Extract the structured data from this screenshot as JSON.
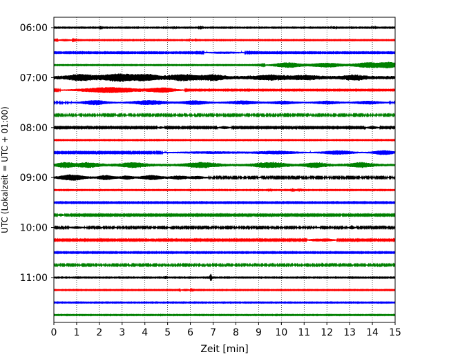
{
  "chart_data": {
    "type": "line",
    "subtype": "helicorder-seismogram",
    "title": "",
    "xlabel": "Zeit  [min]",
    "ylabel": "UTC (Lokalzeit = UTC + 01:00)",
    "xlim": [
      0,
      15
    ],
    "x_ticks": [
      0,
      1,
      2,
      3,
      4,
      5,
      6,
      7,
      8,
      9,
      10,
      11,
      12,
      13,
      14,
      15
    ],
    "x_tick_labels": [
      "0",
      "1",
      "2",
      "3",
      "4",
      "5",
      "6",
      "7",
      "8",
      "9",
      "10",
      "11",
      "12",
      "13",
      "14",
      "15"
    ],
    "y_tick_labels": [
      "06:00",
      "07:00",
      "08:00",
      "09:00",
      "10:00",
      "11:00"
    ],
    "y_tick_row_indices": [
      0,
      4,
      8,
      12,
      16,
      20
    ],
    "grid": {
      "vertical": true,
      "style": "dotted"
    },
    "legend": "none",
    "color_cycle": [
      "#000000",
      "#ff0000",
      "#0000ff",
      "#008000"
    ],
    "row_minutes": 15,
    "traces": [
      {
        "start": "06:00",
        "color": "#000000",
        "noise": 0.15,
        "bursts": [
          {
            "t": 2.05,
            "a": 0.7,
            "w": 0.05
          },
          {
            "t": 5.3,
            "a": 0.5,
            "w": 0.05
          },
          {
            "t": 6.45,
            "a": 0.7,
            "w": 0.06
          },
          {
            "t": 12.3,
            "a": 0.5,
            "w": 0.08
          },
          {
            "t": 14.05,
            "a": 0.5,
            "w": 0.06
          }
        ]
      },
      {
        "start": "06:15",
        "color": "#ff0000",
        "noise": 0.15,
        "bursts": [
          {
            "t": 0.5,
            "a": 0.4,
            "w": 0.3
          },
          {
            "t": 6.1,
            "a": 0.4,
            "w": 0.1
          }
        ]
      },
      {
        "start": "06:30",
        "color": "#0000ff",
        "noise": 0.2,
        "bursts": [
          {
            "t": 7.5,
            "a": 0.35,
            "w": 0.8
          }
        ]
      },
      {
        "start": "06:45",
        "color": "#008000",
        "noise": 0.15,
        "bursts": [
          {
            "t": 10.3,
            "a": 1.1,
            "w": 0.7
          },
          {
            "t": 12.0,
            "a": 1.0,
            "w": 0.7
          },
          {
            "t": 13.9,
            "a": 1.2,
            "w": 0.8
          },
          {
            "t": 14.8,
            "a": 1.0,
            "w": 0.4
          }
        ]
      },
      {
        "start": "07:00",
        "color": "#000000",
        "noise": 0.8,
        "bursts": [
          {
            "t": 1.2,
            "a": 1.0,
            "w": 0.6
          },
          {
            "t": 2.8,
            "a": 1.2,
            "w": 0.7
          },
          {
            "t": 4.0,
            "a": 1.0,
            "w": 0.6
          },
          {
            "t": 5.7,
            "a": 0.9,
            "w": 0.7
          },
          {
            "t": 7.0,
            "a": 0.8,
            "w": 0.5
          },
          {
            "t": 9.5,
            "a": 0.7,
            "w": 0.7
          },
          {
            "t": 11.0,
            "a": 0.6,
            "w": 0.6
          },
          {
            "t": 13.2,
            "a": 0.7,
            "w": 0.5
          }
        ]
      },
      {
        "start": "07:15",
        "color": "#ff0000",
        "noise": 0.2,
        "bursts": [
          {
            "t": 2.5,
            "a": 1.2,
            "w": 1.4
          },
          {
            "t": 4.8,
            "a": 1.0,
            "w": 0.6
          }
        ]
      },
      {
        "start": "07:30",
        "color": "#0000ff",
        "noise": 0.3,
        "bursts": [
          {
            "t": 1.8,
            "a": 0.9,
            "w": 0.6
          },
          {
            "t": 4.2,
            "a": 0.9,
            "w": 0.8
          },
          {
            "t": 6.2,
            "a": 0.8,
            "w": 0.6
          },
          {
            "t": 8.3,
            "a": 0.7,
            "w": 0.7
          },
          {
            "t": 10.1,
            "a": 0.6,
            "w": 0.6
          },
          {
            "t": 12.0,
            "a": 0.6,
            "w": 0.6
          },
          {
            "t": 13.8,
            "a": 0.6,
            "w": 0.6
          }
        ]
      },
      {
        "start": "07:45",
        "color": "#008000",
        "noise": 0.3,
        "bursts": []
      },
      {
        "start": "08:00",
        "color": "#000000",
        "noise": 0.25,
        "bursts": [
          {
            "t": 4.7,
            "a": 0.4,
            "w": 0.1
          },
          {
            "t": 7.5,
            "a": 0.5,
            "w": 0.2
          },
          {
            "t": 14.0,
            "a": 0.6,
            "w": 0.2
          }
        ]
      },
      {
        "start": "08:15",
        "color": "#ff0000",
        "noise": 0.15,
        "bursts": []
      },
      {
        "start": "08:30",
        "color": "#0000ff",
        "noise": 0.25,
        "bursts": [
          {
            "t": 7.0,
            "a": 0.4,
            "w": 1.5
          },
          {
            "t": 9.8,
            "a": 0.6,
            "w": 1.0
          },
          {
            "t": 12.5,
            "a": 0.8,
            "w": 0.7
          },
          {
            "t": 14.5,
            "a": 0.9,
            "w": 0.5
          }
        ]
      },
      {
        "start": "08:45",
        "color": "#008000",
        "noise": 0.6,
        "bursts": [
          {
            "t": 0.5,
            "a": 0.9,
            "w": 0.4
          },
          {
            "t": 1.5,
            "a": 0.8,
            "w": 0.5
          },
          {
            "t": 3.5,
            "a": 0.8,
            "w": 0.6
          },
          {
            "t": 6.5,
            "a": 0.9,
            "w": 0.7
          },
          {
            "t": 9.5,
            "a": 0.9,
            "w": 0.7
          },
          {
            "t": 11.5,
            "a": 0.8,
            "w": 0.5
          },
          {
            "t": 13.5,
            "a": 0.8,
            "w": 0.5
          }
        ]
      },
      {
        "start": "09:00",
        "color": "#000000",
        "noise": 0.3,
        "bursts": [
          {
            "t": 0.8,
            "a": 1.2,
            "w": 0.6
          },
          {
            "t": 2.3,
            "a": 0.9,
            "w": 0.4
          },
          {
            "t": 3.2,
            "a": 0.7,
            "w": 0.3
          },
          {
            "t": 4.3,
            "a": 0.9,
            "w": 0.5
          },
          {
            "t": 5.5,
            "a": 0.7,
            "w": 0.4
          },
          {
            "t": 6.3,
            "a": 0.5,
            "w": 0.3
          }
        ]
      },
      {
        "start": "09:15",
        "color": "#ff0000",
        "noise": 0.15,
        "bursts": [
          {
            "t": 9.5,
            "a": 0.6,
            "w": 0.05
          },
          {
            "t": 10.5,
            "a": 0.8,
            "w": 0.05
          },
          {
            "t": 10.8,
            "a": 0.6,
            "w": 0.05
          }
        ]
      },
      {
        "start": "09:30",
        "color": "#0000ff",
        "noise": 0.2,
        "bursts": []
      },
      {
        "start": "09:45",
        "color": "#008000",
        "noise": 0.25,
        "bursts": [
          {
            "t": 0.3,
            "a": 0.5,
            "w": 0.1
          }
        ]
      },
      {
        "start": "10:00",
        "color": "#000000",
        "noise": 0.3,
        "bursts": [
          {
            "t": 1.0,
            "a": 0.4,
            "w": 0.2
          },
          {
            "t": 13.1,
            "a": 0.7,
            "w": 0.1
          }
        ]
      },
      {
        "start": "10:15",
        "color": "#ff0000",
        "noise": 0.25,
        "bursts": [
          {
            "t": 11.5,
            "a": 0.4,
            "w": 0.3
          },
          {
            "t": 12.0,
            "a": 0.5,
            "w": 0.3
          }
        ]
      },
      {
        "start": "10:30",
        "color": "#0000ff",
        "noise": 0.2,
        "bursts": []
      },
      {
        "start": "10:45",
        "color": "#008000",
        "noise": 0.3,
        "bursts": [
          {
            "t": 11.8,
            "a": 0.8,
            "w": 0.05
          }
        ]
      },
      {
        "start": "11:00",
        "color": "#000000",
        "noise": 0.15,
        "bursts": [
          {
            "t": 4.9,
            "a": 0.6,
            "w": 0.04
          },
          {
            "t": 6.9,
            "a": 1.6,
            "w": 0.04
          }
        ]
      },
      {
        "start": "11:15",
        "color": "#ff0000",
        "noise": 0.15,
        "bursts": [
          {
            "t": 5.8,
            "a": 0.4,
            "w": 0.2
          }
        ]
      },
      {
        "start": "11:30",
        "color": "#0000ff",
        "noise": 0.15,
        "bursts": []
      },
      {
        "start": "11:45",
        "color": "#008000",
        "noise": 0.15,
        "bursts": []
      }
    ]
  }
}
